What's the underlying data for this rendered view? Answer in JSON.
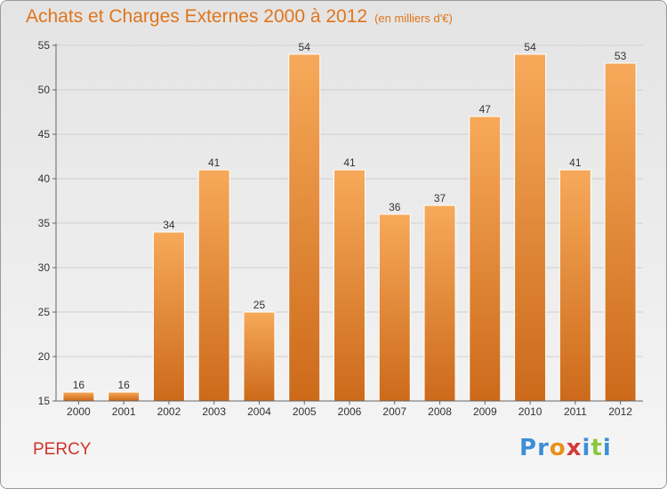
{
  "title": "Achats et Charges Externes 2000 à 2012",
  "unit": "(en milliers d'€)",
  "place": "PERCY",
  "logo": {
    "letters": [
      "P",
      "r",
      "o",
      "x",
      "i",
      "t",
      "i"
    ],
    "colors": [
      "#3d8fd6",
      "#3d8fd6",
      "#e8901a",
      "#d63a3a",
      "#3d8fd6",
      "#8cc63f",
      "#3d8fd6"
    ]
  },
  "colors": {
    "title": "#e0751a",
    "place": "#d0342c",
    "bar_top": "#f7a95a",
    "bar_bottom": "#cc6a1a"
  },
  "chart_data": {
    "type": "bar",
    "categories": [
      "2000",
      "2001",
      "2002",
      "2003",
      "2004",
      "2005",
      "2006",
      "2007",
      "2008",
      "2009",
      "2010",
      "2011",
      "2012"
    ],
    "values": [
      16,
      16,
      34,
      41,
      25,
      54,
      41,
      36,
      37,
      47,
      54,
      41,
      53
    ],
    "ylim": [
      15,
      55
    ],
    "yticks": [
      15,
      20,
      25,
      30,
      35,
      40,
      45,
      50,
      55
    ],
    "grid": true
  }
}
